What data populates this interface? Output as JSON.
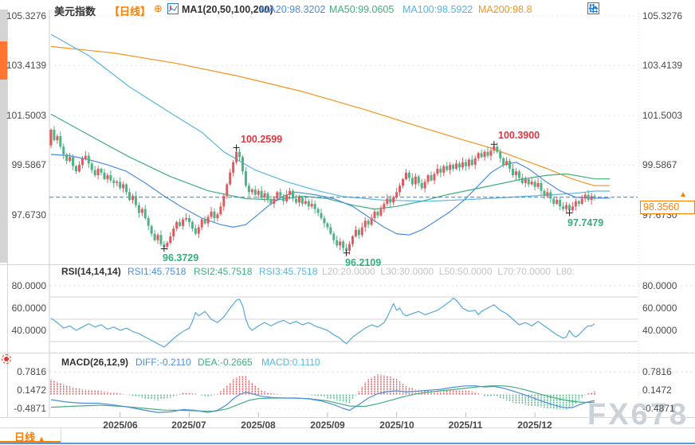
{
  "header": {
    "symbol": "美元指数",
    "period": "【日线】",
    "plus": "⊕",
    "ma_title": "MA1(20,50,100,200)",
    "ma20": "MA20:98.3202",
    "ma50": "MA50:99.0605",
    "ma100": "MA100:98.5922",
    "ma200": "MA200:98.8"
  },
  "toolbar": {
    "icons": [
      "pan-icon",
      "axis-zoom-vertical-icon",
      "axis-zoom-horizontal-icon",
      "shift-right-icon"
    ]
  },
  "rsi": {
    "title": "RSI(14,14,14)",
    "r1": "RSI1:45.7518",
    "r2": "RSI2:45.7518",
    "r3": "RSI3:45.7518",
    "levels": "L20:20.0000  L30:30.0000  L50:50.0000  L70:70.0000  L80:"
  },
  "macd": {
    "title": "MACD(26,12,9)",
    "diff": "DIFF:-0.2110",
    "dea": "DEA:-0.2665",
    "macd": "MACD:0.1110"
  },
  "price_marker": {
    "label": "98.3560",
    "arrow": "▲",
    "value": 98.356
  },
  "bottom": {
    "tab": "日线",
    "arrow": "▲"
  },
  "watermark": {
    "text": "FX678"
  },
  "colors": {
    "accent": "#ff7e00",
    "candle_up": "#df5a5f",
    "candle_down": "#4fb286",
    "ma20": "#4a8ede",
    "ma50": "#3fae7d",
    "ma100": "#57b6e2",
    "ma200": "#f5941f",
    "rsi_line": "#58a9d8",
    "diff": "#4a8ede",
    "dea": "#46ad80",
    "price_line": "#2f7ed8",
    "annotation_high": "#e0353f",
    "annotation_low": "#2eb27c",
    "grid": "#d9d9d9",
    "grid_light": "#e8e8e8",
    "toolbar": "#2b7bd4",
    "watermark": "#c3c9d2",
    "bottom_line": "#5b9bd5",
    "scroll_thumb": "#ff7430"
  },
  "chart_data": {
    "type": "candlestick",
    "title": "美元指数 日线",
    "ylim": [
      95.9,
      105.6
    ],
    "price_axis": {
      "labels": [
        "105.3276",
        "103.4139",
        "101.5003",
        "99.5867",
        "97.6730"
      ],
      "values": [
        105.3276,
        103.4139,
        101.5003,
        99.5867,
        97.673
      ]
    },
    "months": [
      {
        "day": 22,
        "label": "2025/06"
      },
      {
        "day": 44,
        "label": "2025/07"
      },
      {
        "day": 66,
        "label": "2025/08"
      },
      {
        "day": 88,
        "label": "2025/09"
      },
      {
        "day": 110,
        "label": "2025/10"
      },
      {
        "day": 132,
        "label": "2025/11"
      },
      {
        "day": 154,
        "label": "2025/12"
      }
    ],
    "closes": [
      100.95,
      100.55,
      100.7,
      100.3,
      100.0,
      99.75,
      99.9,
      99.55,
      99.35,
      99.6,
      99.85,
      99.95,
      99.65,
      99.4,
      99.2,
      99.45,
      99.3,
      99.05,
      99.2,
      99.0,
      98.9,
      98.95,
      98.7,
      98.85,
      98.55,
      98.25,
      98.4,
      98.05,
      97.75,
      97.9,
      97.55,
      97.25,
      96.95,
      96.7,
      96.9,
      96.55,
      96.45,
      96.6,
      96.85,
      97.15,
      97.4,
      97.25,
      97.5,
      97.55,
      97.4,
      97.15,
      96.95,
      97.2,
      97.5,
      97.35,
      97.6,
      97.8,
      97.55,
      97.7,
      98.0,
      98.4,
      98.85,
      99.3,
      99.7,
      100.1,
      99.9,
      99.35,
      98.8,
      98.55,
      98.65,
      98.45,
      98.6,
      98.35,
      98.5,
      98.25,
      98.1,
      98.3,
      98.55,
      98.4,
      98.2,
      98.45,
      98.6,
      98.3,
      98.15,
      98.35,
      98.1,
      98.2,
      98.0,
      98.1,
      97.9,
      97.75,
      97.55,
      97.35,
      97.2,
      96.95,
      96.7,
      96.5,
      96.65,
      96.4,
      96.3,
      96.55,
      96.85,
      97.1,
      96.9,
      97.2,
      97.45,
      97.3,
      97.55,
      97.8,
      97.65,
      97.9,
      98.1,
      98.3,
      98.15,
      98.35,
      98.55,
      98.8,
      99.05,
      99.3,
      99.1,
      98.85,
      99.15,
      98.9,
      98.7,
      98.95,
      99.2,
      99.0,
      99.25,
      99.45,
      99.3,
      99.55,
      99.4,
      99.6,
      99.45,
      99.65,
      99.5,
      99.7,
      99.55,
      99.8,
      99.6,
      99.85,
      100.05,
      99.9,
      100.1,
      99.95,
      100.15,
      100.3,
      100.1,
      99.85,
      99.6,
      99.75,
      99.45,
      99.2,
      99.35,
      99.1,
      98.9,
      99.05,
      98.85,
      98.95,
      98.75,
      98.9,
      98.6,
      98.4,
      98.55,
      98.3,
      98.1,
      98.25,
      98.0,
      97.9,
      98.05,
      97.85,
      98.0,
      98.2,
      98.1,
      98.3,
      98.45,
      98.25,
      98.4,
      98.36
    ],
    "high_overrides": {
      "59": 100.2599,
      "141": 100.39
    },
    "low_overrides": {
      "36": 96.3729,
      "94": 96.2109,
      "165": 97.7479
    },
    "annotations": [
      {
        "day": 59,
        "price": 100.2599,
        "label": "100.2599",
        "kind": "high"
      },
      {
        "day": 141,
        "price": 100.39,
        "label": "100.3900",
        "kind": "high"
      },
      {
        "day": 36,
        "price": 96.3729,
        "label": "96.3729",
        "kind": "low"
      },
      {
        "day": 94,
        "price": 96.2109,
        "label": "96.2109",
        "kind": "low"
      },
      {
        "day": 165,
        "price": 97.7479,
        "label": "97.7479",
        "kind": "low"
      }
    ],
    "current_price": 98.356,
    "ma20_path": [
      [
        0,
        100.0
      ],
      [
        6,
        99.95
      ],
      [
        12,
        99.8
      ],
      [
        18,
        99.6
      ],
      [
        24,
        99.35
      ],
      [
        30,
        98.9
      ],
      [
        36,
        98.4
      ],
      [
        42,
        97.95
      ],
      [
        48,
        97.55
      ],
      [
        54,
        97.3
      ],
      [
        58,
        97.2
      ],
      [
        62,
        97.3
      ],
      [
        66,
        97.7
      ],
      [
        70,
        98.1
      ],
      [
        74,
        98.4
      ],
      [
        78,
        98.55
      ],
      [
        84,
        98.45
      ],
      [
        90,
        98.3
      ],
      [
        96,
        98.0
      ],
      [
        101,
        97.6
      ],
      [
        106,
        97.2
      ],
      [
        110,
        96.95
      ],
      [
        114,
        96.9
      ],
      [
        118,
        97.1
      ],
      [
        122,
        97.4
      ],
      [
        127,
        97.8
      ],
      [
        132,
        98.3
      ],
      [
        136,
        98.8
      ],
      [
        140,
        99.3
      ],
      [
        144,
        99.6
      ],
      [
        148,
        99.7
      ],
      [
        152,
        99.45
      ],
      [
        157,
        99.0
      ],
      [
        162,
        98.6
      ],
      [
        167,
        98.35
      ],
      [
        173,
        98.32
      ]
    ],
    "ma50_path": [
      [
        0,
        101.55
      ],
      [
        12,
        100.75
      ],
      [
        25,
        99.9
      ],
      [
        38,
        99.15
      ],
      [
        50,
        98.6
      ],
      [
        62,
        98.3
      ],
      [
        72,
        98.25
      ],
      [
        80,
        98.4
      ],
      [
        88,
        98.3
      ],
      [
        96,
        98.05
      ],
      [
        103,
        97.9
      ],
      [
        110,
        98.0
      ],
      [
        118,
        98.2
      ],
      [
        126,
        98.45
      ],
      [
        134,
        98.65
      ],
      [
        142,
        98.85
      ],
      [
        150,
        99.05
      ],
      [
        158,
        99.2
      ],
      [
        164,
        99.25
      ],
      [
        169,
        99.15
      ],
      [
        173,
        99.06
      ]
    ],
    "ma100_path": [
      [
        0,
        104.62
      ],
      [
        12,
        103.8
      ],
      [
        25,
        102.6
      ],
      [
        38,
        101.6
      ],
      [
        48,
        100.85
      ],
      [
        55,
        100.1
      ],
      [
        65,
        99.4
      ],
      [
        75,
        98.95
      ],
      [
        85,
        98.6
      ],
      [
        93,
        98.38
      ],
      [
        105,
        98.25
      ],
      [
        120,
        98.2
      ],
      [
        135,
        98.28
      ],
      [
        150,
        98.38
      ],
      [
        160,
        98.45
      ],
      [
        168,
        98.52
      ],
      [
        173,
        98.59
      ]
    ],
    "ma200_path": [
      [
        0,
        104.15
      ],
      [
        20,
        103.9
      ],
      [
        40,
        103.5
      ],
      [
        60,
        103.0
      ],
      [
        80,
        102.42
      ],
      [
        100,
        101.72
      ],
      [
        115,
        101.15
      ],
      [
        130,
        100.6
      ],
      [
        140,
        100.25
      ],
      [
        150,
        99.8
      ],
      [
        158,
        99.45
      ],
      [
        165,
        99.1
      ],
      [
        170,
        98.9
      ],
      [
        173,
        98.8
      ]
    ],
    "rsi_axis": {
      "labels": [
        "80.0000",
        "60.0000",
        "40.0000"
      ],
      "values": [
        80,
        60,
        40
      ]
    },
    "rsi_gridlines": [
      80,
      70,
      50,
      30,
      20
    ],
    "rsi_path": [
      [
        0,
        51
      ],
      [
        2,
        47
      ],
      [
        4,
        42
      ],
      [
        6,
        44
      ],
      [
        8,
        40
      ],
      [
        10,
        43
      ],
      [
        12,
        46
      ],
      [
        14,
        43
      ],
      [
        16,
        45
      ],
      [
        18,
        41
      ],
      [
        20,
        43
      ],
      [
        22,
        40
      ],
      [
        24,
        42
      ],
      [
        26,
        39
      ],
      [
        28,
        37
      ],
      [
        30,
        34
      ],
      [
        32,
        31
      ],
      [
        34,
        28
      ],
      [
        36,
        25
      ],
      [
        38,
        30
      ],
      [
        40,
        35
      ],
      [
        42,
        39
      ],
      [
        44,
        42
      ],
      [
        45,
        48
      ],
      [
        46,
        56
      ],
      [
        47,
        53
      ],
      [
        49,
        57
      ],
      [
        51,
        50
      ],
      [
        53,
        47
      ],
      [
        55,
        52
      ],
      [
        57,
        60
      ],
      [
        59,
        67
      ],
      [
        60,
        68
      ],
      [
        61,
        62
      ],
      [
        62,
        50
      ],
      [
        63,
        43
      ],
      [
        64,
        40
      ],
      [
        66,
        44
      ],
      [
        68,
        47
      ],
      [
        70,
        44
      ],
      [
        72,
        47
      ],
      [
        74,
        49
      ],
      [
        76,
        46
      ],
      [
        78,
        48
      ],
      [
        80,
        45
      ],
      [
        82,
        47
      ],
      [
        84,
        44
      ],
      [
        86,
        42
      ],
      [
        88,
        40
      ],
      [
        90,
        36
      ],
      [
        92,
        33
      ],
      [
        93,
        30
      ],
      [
        94,
        28
      ],
      [
        95,
        31
      ],
      [
        96,
        34
      ],
      [
        98,
        38
      ],
      [
        100,
        42
      ],
      [
        102,
        45
      ],
      [
        104,
        43
      ],
      [
        106,
        47
      ],
      [
        107,
        52
      ],
      [
        108,
        58
      ],
      [
        109,
        64
      ],
      [
        110,
        58
      ],
      [
        111,
        60
      ],
      [
        112,
        55
      ],
      [
        113,
        53
      ],
      [
        115,
        55
      ],
      [
        117,
        57
      ],
      [
        119,
        54
      ],
      [
        121,
        56
      ],
      [
        123,
        58
      ],
      [
        125,
        62
      ],
      [
        127,
        66
      ],
      [
        128,
        69
      ],
      [
        129,
        67
      ],
      [
        131,
        60
      ],
      [
        133,
        57
      ],
      [
        135,
        58
      ],
      [
        136,
        54
      ],
      [
        137,
        57
      ],
      [
        139,
        60
      ],
      [
        141,
        63
      ],
      [
        143,
        58
      ],
      [
        145,
        55
      ],
      [
        147,
        50
      ],
      [
        149,
        45
      ],
      [
        151,
        47
      ],
      [
        153,
        44
      ],
      [
        155,
        48
      ],
      [
        157,
        44
      ],
      [
        159,
        40
      ],
      [
        161,
        36
      ],
      [
        163,
        33
      ],
      [
        164,
        34
      ],
      [
        165,
        40
      ],
      [
        166,
        36
      ],
      [
        167,
        34
      ],
      [
        168,
        36
      ],
      [
        170,
        42
      ],
      [
        171,
        44
      ],
      [
        172,
        44
      ],
      [
        173,
        45.75
      ]
    ],
    "macd_axis": {
      "labels": [
        "0.7816",
        "0.1472",
        "-0.4871"
      ],
      "values": [
        0.7816,
        0.1472,
        -0.4871
      ]
    },
    "diff_path": [
      [
        0,
        -0.18
      ],
      [
        5,
        -0.26
      ],
      [
        10,
        -0.3
      ],
      [
        15,
        -0.3
      ],
      [
        20,
        -0.36
      ],
      [
        25,
        -0.44
      ],
      [
        30,
        -0.55
      ],
      [
        34,
        -0.62
      ],
      [
        38,
        -0.6
      ],
      [
        42,
        -0.52
      ],
      [
        46,
        -0.55
      ],
      [
        50,
        -0.62
      ],
      [
        53,
        -0.55
      ],
      [
        56,
        -0.35
      ],
      [
        58,
        -0.15
      ],
      [
        60,
        0.0
      ],
      [
        62,
        0.08
      ],
      [
        64,
        0.03
      ],
      [
        67,
        -0.06
      ],
      [
        70,
        -0.1
      ],
      [
        74,
        -0.12
      ],
      [
        78,
        -0.12
      ],
      [
        82,
        -0.15
      ],
      [
        86,
        -0.22
      ],
      [
        90,
        -0.35
      ],
      [
        93,
        -0.48
      ],
      [
        95,
        -0.55
      ],
      [
        98,
        -0.35
      ],
      [
        101,
        -0.12
      ],
      [
        104,
        0.03
      ],
      [
        107,
        0.1
      ],
      [
        110,
        0.13
      ],
      [
        113,
        0.09
      ],
      [
        116,
        0.11
      ],
      [
        120,
        0.15
      ],
      [
        124,
        0.18
      ],
      [
        128,
        0.25
      ],
      [
        132,
        0.3
      ],
      [
        135,
        0.3
      ],
      [
        138,
        0.26
      ],
      [
        141,
        0.28
      ],
      [
        144,
        0.22
      ],
      [
        147,
        0.12
      ],
      [
        150,
        0.02
      ],
      [
        153,
        -0.1
      ],
      [
        156,
        -0.22
      ],
      [
        159,
        -0.33
      ],
      [
        162,
        -0.42
      ],
      [
        164,
        -0.46
      ],
      [
        166,
        -0.45
      ],
      [
        168,
        -0.36
      ],
      [
        170,
        -0.28
      ],
      [
        172,
        -0.23
      ],
      [
        173,
        -0.211
      ]
    ],
    "dea_path": [
      [
        0,
        -0.44
      ],
      [
        8,
        -0.4
      ],
      [
        16,
        -0.37
      ],
      [
        24,
        -0.42
      ],
      [
        30,
        -0.48
      ],
      [
        36,
        -0.54
      ],
      [
        42,
        -0.55
      ],
      [
        48,
        -0.57
      ],
      [
        52,
        -0.58
      ],
      [
        56,
        -0.5
      ],
      [
        60,
        -0.33
      ],
      [
        63,
        -0.2
      ],
      [
        66,
        -0.14
      ],
      [
        70,
        -0.12
      ],
      [
        76,
        -0.12
      ],
      [
        82,
        -0.14
      ],
      [
        88,
        -0.22
      ],
      [
        92,
        -0.32
      ],
      [
        95,
        -0.4
      ],
      [
        100,
        -0.41
      ],
      [
        104,
        -0.32
      ],
      [
        108,
        -0.2
      ],
      [
        112,
        -0.08
      ],
      [
        116,
        0.02
      ],
      [
        120,
        0.08
      ],
      [
        124,
        0.13
      ],
      [
        128,
        0.17
      ],
      [
        132,
        0.22
      ],
      [
        136,
        0.27
      ],
      [
        140,
        0.3
      ],
      [
        144,
        0.3
      ],
      [
        147,
        0.26
      ],
      [
        150,
        0.19
      ],
      [
        153,
        0.1
      ],
      [
        156,
        0.0
      ],
      [
        159,
        -0.08
      ],
      [
        162,
        -0.16
      ],
      [
        165,
        -0.22
      ],
      [
        168,
        -0.26
      ],
      [
        171,
        -0.275
      ],
      [
        173,
        -0.2665
      ]
    ]
  }
}
